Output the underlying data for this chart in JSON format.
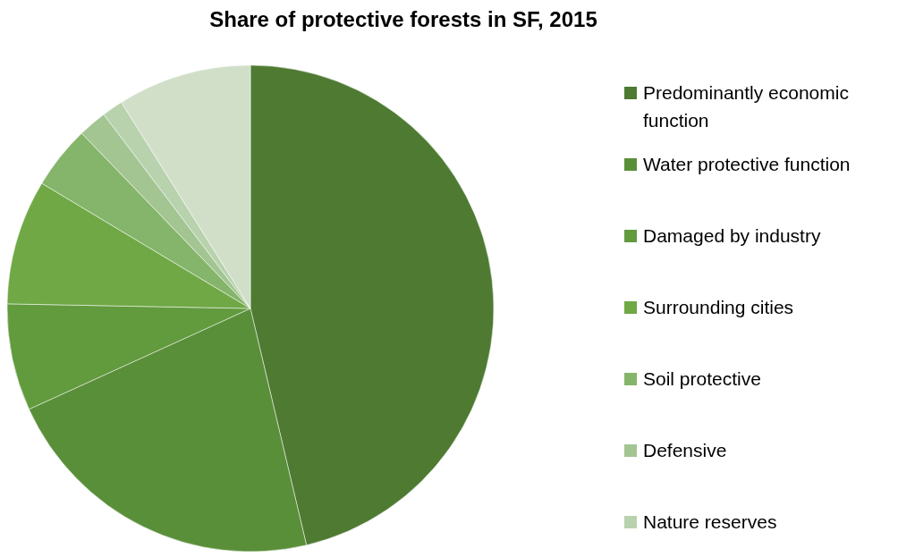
{
  "chart_data": {
    "type": "pie",
    "title": "Share of protective forests in SF, 2015",
    "categories": [
      "Predominantly economic function",
      "Water protective function",
      "Damaged by industry",
      "Surrounding cities",
      "Soil protective",
      "Defensive",
      "Nature reserves",
      null
    ],
    "values": [
      46.3,
      21.9,
      7.1,
      8.3,
      4.2,
      1.9,
      1.4,
      8.9
    ],
    "colors": [
      "#4e7a32",
      "#5a8f3a",
      "#629a3e",
      "#6fa845",
      "#85b56a",
      "#a3c592",
      "#b8d2ae",
      "#d1dfc9"
    ],
    "legend": "right"
  }
}
